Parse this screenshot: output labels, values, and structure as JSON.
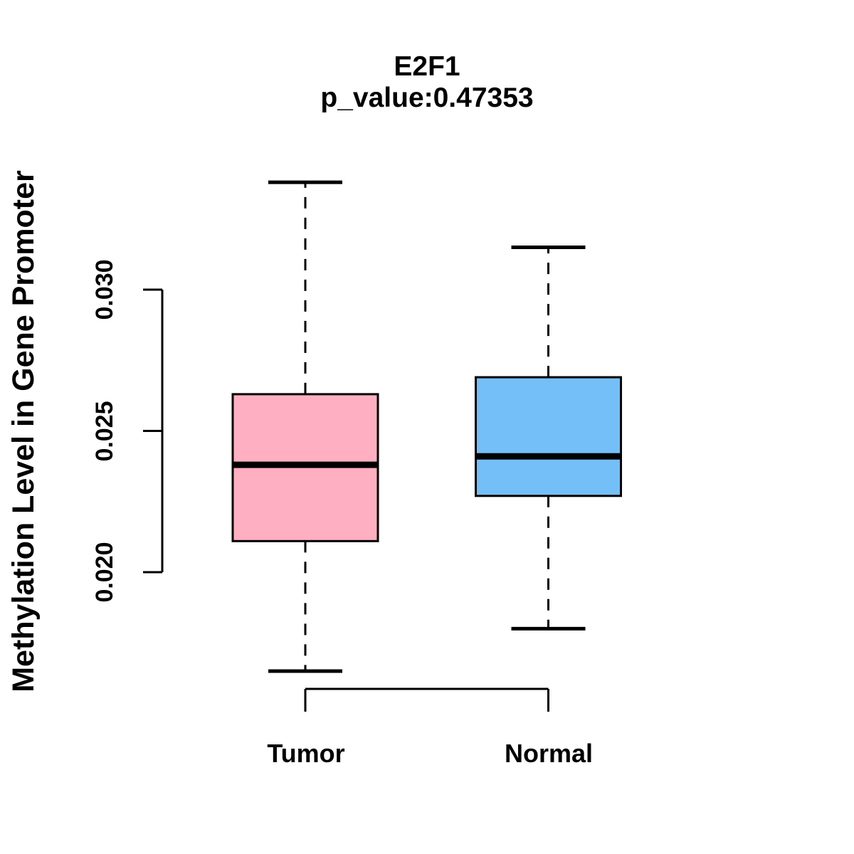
{
  "chart_data": {
    "type": "boxplot",
    "title": "E2F1",
    "subtitle": "p_value:0.47353",
    "ylabel": "Methylation Level in Gene Promoter",
    "xlabel": "",
    "categories": [
      "Tumor",
      "Normal"
    ],
    "series": [
      {
        "name": "Tumor",
        "color": "#FFAFC1",
        "whisker_low": 0.0165,
        "q1": 0.0211,
        "median": 0.0238,
        "q3": 0.0263,
        "whisker_high": 0.0338
      },
      {
        "name": "Normal",
        "color": "#74BFF7",
        "whisker_low": 0.018,
        "q1": 0.0227,
        "median": 0.0241,
        "q3": 0.0269,
        "whisker_high": 0.0315
      }
    ],
    "y_axis_range": [
      0.02,
      0.03
    ],
    "y_ticks": [
      0.03,
      0.025,
      0.02
    ],
    "y_tick_labels": [
      "0.030",
      "0.025",
      "0.020"
    ],
    "grid": false,
    "legend": "none",
    "colors": {
      "tumor_fill": "#FFAFC1",
      "normal_fill": "#74BFF7",
      "stroke": "#000000",
      "background": "#FFFFFF"
    }
  }
}
